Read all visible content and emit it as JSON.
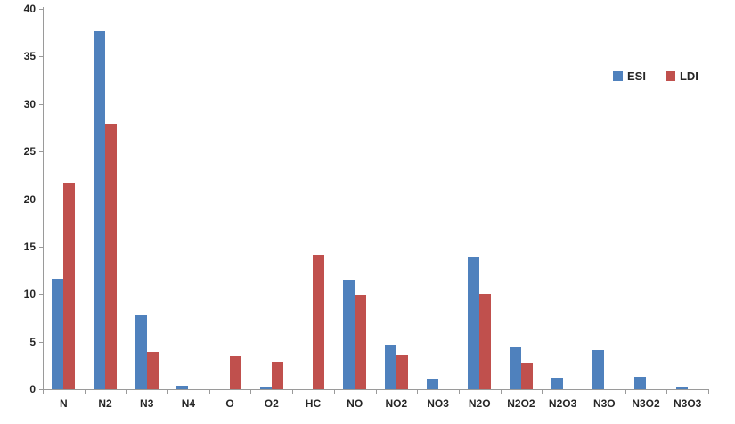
{
  "chart_data": {
    "type": "bar",
    "title": "",
    "xlabel": "",
    "ylabel": "",
    "ylim": [
      0,
      40
    ],
    "ytick_step": 5,
    "yticks": [
      0,
      5,
      10,
      15,
      20,
      25,
      30,
      35,
      40
    ],
    "grid": "off",
    "legend_position": "top-right",
    "categories": [
      "N",
      "N2",
      "N3",
      "N4",
      "O",
      "O2",
      "HC",
      "NO",
      "NO2",
      "NO3",
      "N2O",
      "N2O2",
      "N2O3",
      "N3O",
      "N3O2",
      "N3O3"
    ],
    "series": [
      {
        "name": "ESI",
        "color": "#4F81BD",
        "values": [
          11.6,
          37.7,
          7.8,
          0.4,
          0,
          0.2,
          0,
          11.5,
          4.7,
          1.1,
          14.0,
          4.4,
          1.2,
          4.1,
          1.3,
          0.15
        ]
      },
      {
        "name": "LDI",
        "color": "#C0504D",
        "values": [
          21.6,
          27.9,
          3.9,
          0,
          3.5,
          2.9,
          14.1,
          9.9,
          3.6,
          0,
          10.0,
          2.7,
          0,
          0,
          0,
          0
        ]
      }
    ]
  },
  "colors": {
    "axis": "#9a9a9a",
    "label_text": "#262626",
    "background": "#ffffff"
  }
}
